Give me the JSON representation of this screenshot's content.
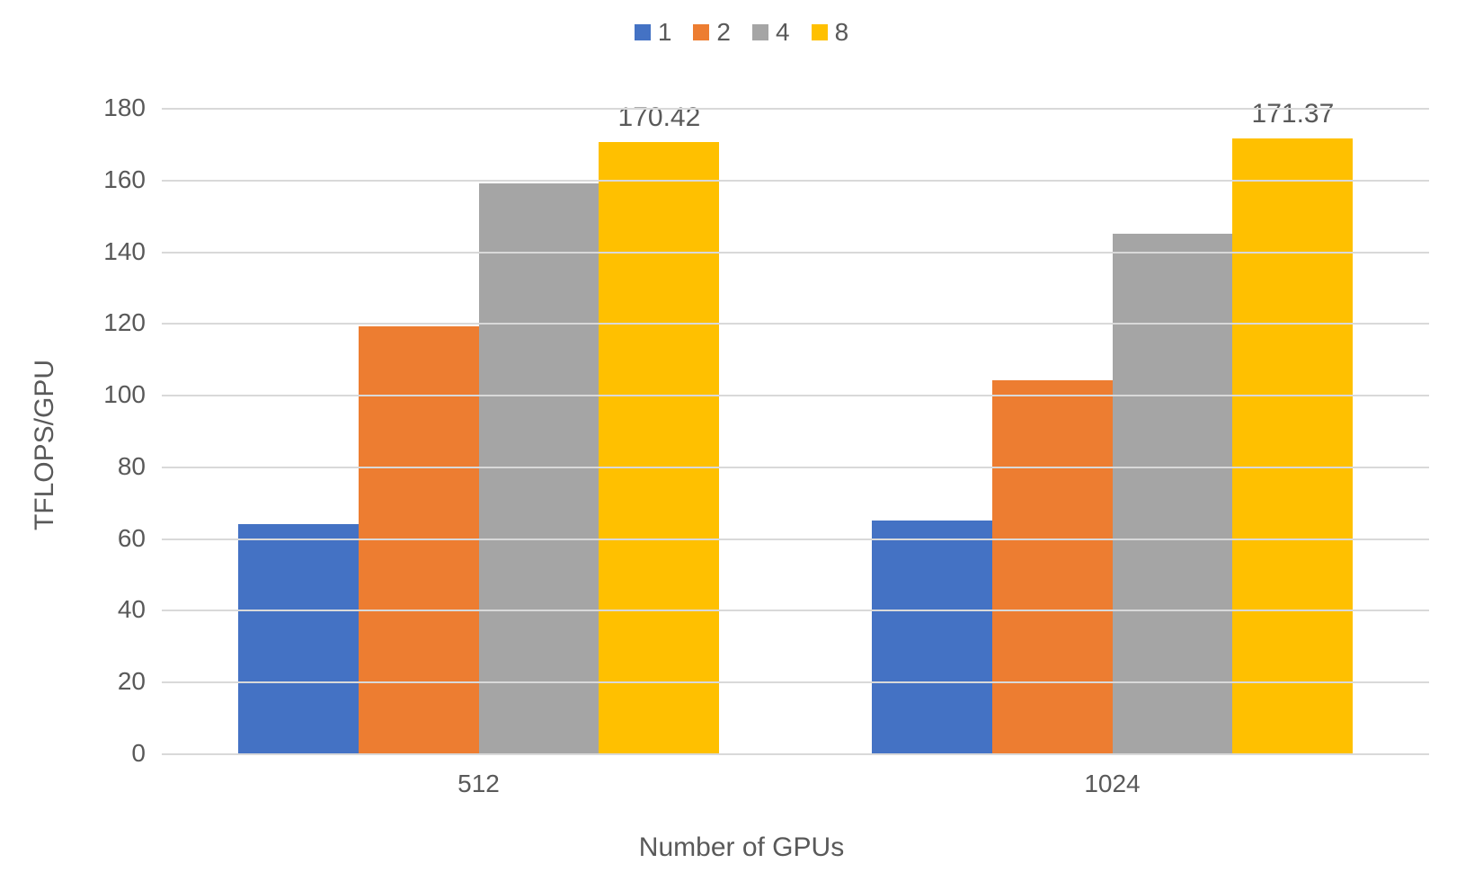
{
  "chart": {
    "type": "bar",
    "background_color": "#ffffff",
    "grid_color": "#d9d9d9",
    "text_color": "#595959",
    "tick_fontsize": 28,
    "label_fontsize": 30,
    "legend_fontsize": 28,
    "data_label_fontsize": 30,
    "y_axis": {
      "title": "TFLOPS/GPU",
      "min": 0,
      "max": 180,
      "step": 20,
      "ticks": [
        0,
        20,
        40,
        60,
        80,
        100,
        120,
        140,
        160,
        180
      ]
    },
    "x_axis": {
      "title": "Number of GPUs",
      "categories": [
        "512",
        "1024"
      ]
    },
    "series": [
      {
        "name": "1",
        "color": "#4472c4",
        "values": [
          64,
          65
        ]
      },
      {
        "name": "2",
        "color": "#ed7d31",
        "values": [
          119,
          104
        ]
      },
      {
        "name": "4",
        "color": "#a5a5a5",
        "values": [
          159,
          145
        ]
      },
      {
        "name": "8",
        "color": "#ffc000",
        "values": [
          170.42,
          171.37
        ]
      }
    ],
    "data_labels": [
      {
        "group_index": 0,
        "series_index": 3,
        "text": "170.42"
      },
      {
        "group_index": 1,
        "series_index": 3,
        "text": "171.37"
      }
    ],
    "bar_gap_pct": 0,
    "group_padding_pct": 12
  }
}
